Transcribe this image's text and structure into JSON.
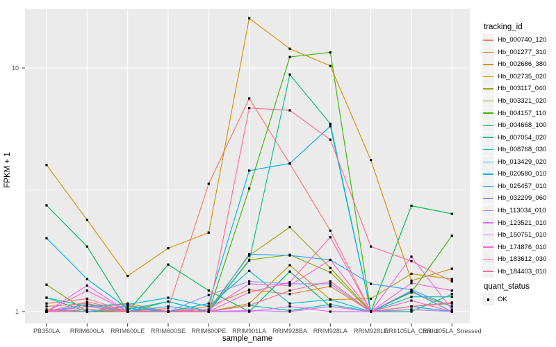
{
  "figure": {
    "panel_bg": "#EBEBEB",
    "grid_color": "#FFFFFF",
    "tick_color": "#333333",
    "tick_label_color": "#4D4D4D",
    "y_axis": {
      "title": "FPKM + 1",
      "tick_labels": [
        "10",
        "1"
      ]
    },
    "x_axis": {
      "title": "sample_name"
    },
    "legend": {
      "title": "tracking_id"
    },
    "quant_legend": {
      "title": "quant_status",
      "item_label": "OK",
      "marker_color": "#000000"
    }
  },
  "chart_data": {
    "type": "line",
    "title": "",
    "xlabel": "sample_name",
    "ylabel": "FPKM + 1",
    "y_scale": "log10",
    "y_major_ticks": [
      1,
      10
    ],
    "y_minor_ticks": [
      3.162
    ],
    "ylim": [
      0.93,
      17.5
    ],
    "grid": true,
    "legend_position": "right",
    "point_shape": "filled-square",
    "point_color": "#000000",
    "categories": [
      "PB350LA",
      "RRIM600LA",
      "RRIM600LE",
      "RRIM600SE",
      "RRIM600PE",
      "RRIM901LA",
      "RRIM928BA",
      "RRIM928LA",
      "RRIM928LE",
      "RRII105LA_Control",
      "RRII105LA_Stressed"
    ],
    "series": [
      {
        "name": "Hb_000740_120",
        "color": "#F8766D",
        "values": [
          1.08,
          1.13,
          1.0,
          1.03,
          3.35,
          7.5,
          4.05,
          2.15,
          1.0,
          1.05,
          1.0
        ]
      },
      {
        "name": "Hb_001277_310",
        "color": "#EA8331",
        "values": [
          1.05,
          1.08,
          1.0,
          1.0,
          1.05,
          1.23,
          1.18,
          1.27,
          1.0,
          1.05,
          1.08
        ]
      },
      {
        "name": "Hb_002686_380",
        "color": "#D89000",
        "values": [
          4.0,
          2.38,
          1.4,
          1.82,
          2.11,
          16.0,
          12.0,
          10.2,
          4.19,
          1.34,
          1.5
        ]
      },
      {
        "name": "Hb_002735_020",
        "color": "#C09B00",
        "values": [
          1.0,
          1.05,
          1.08,
          1.0,
          1.0,
          1.08,
          1.55,
          1.12,
          1.13,
          1.43,
          1.36
        ]
      },
      {
        "name": "Hb_003117_040",
        "color": "#A3A500",
        "values": [
          1.0,
          1.02,
          1.0,
          1.0,
          1.02,
          1.7,
          2.22,
          1.51,
          1.0,
          1.02,
          1.0
        ]
      },
      {
        "name": "Hb_003321_020",
        "color": "#7CAE00",
        "values": [
          1.29,
          1.0,
          1.05,
          1.0,
          1.0,
          1.63,
          1.71,
          1.45,
          1.0,
          1.2,
          1.05
        ]
      },
      {
        "name": "Hb_004157_110",
        "color": "#39B600",
        "values": [
          1.02,
          1.0,
          1.0,
          1.0,
          1.0,
          3.2,
          11.1,
          11.6,
          1.0,
          1.2,
          2.05
        ]
      },
      {
        "name": "Hb_004668_100",
        "color": "#00BB4E",
        "values": [
          2.73,
          1.85,
          1.0,
          1.56,
          1.22,
          1.0,
          1.46,
          1.05,
          1.0,
          2.72,
          2.52
        ]
      },
      {
        "name": "Hb_007054_020",
        "color": "#00C087",
        "values": [
          1.14,
          1.05,
          1.0,
          1.1,
          1.0,
          1.62,
          9.4,
          5.9,
          1.0,
          1.0,
          1.18
        ]
      },
      {
        "name": "Hb_008768_030",
        "color": "#00C0B2",
        "values": [
          1.14,
          1.0,
          1.02,
          1.1,
          1.0,
          1.06,
          1.01,
          1.07,
          1.0,
          1.15,
          1.15
        ]
      },
      {
        "name": "Hb_013429_020",
        "color": "#00BCD8",
        "values": [
          1.0,
          1.05,
          1.07,
          1.14,
          1.05,
          1.47,
          1.08,
          1.12,
          1.0,
          1.05,
          1.0
        ]
      },
      {
        "name": "Hb_020580_010",
        "color": "#00B0F6",
        "values": [
          2.0,
          1.36,
          1.03,
          1.0,
          1.08,
          3.79,
          4.06,
          5.77,
          1.0,
          1.21,
          1.0
        ]
      },
      {
        "name": "Hb_025457_010",
        "color": "#35A2FF",
        "values": [
          1.0,
          1.07,
          1.0,
          1.05,
          1.0,
          1.72,
          1.7,
          1.63,
          1.3,
          1.23,
          1.05
        ]
      },
      {
        "name": "Hb_032299_060",
        "color": "#9590FF",
        "values": [
          1.0,
          1.0,
          1.06,
          1.0,
          1.17,
          1.33,
          1.3,
          1.3,
          1.0,
          1.22,
          1.0
        ]
      },
      {
        "name": "Hb_113034_010",
        "color": "#C77CFF",
        "values": [
          1.0,
          1.02,
          1.0,
          1.0,
          1.0,
          1.01,
          1.0,
          1.05,
          1.0,
          1.02,
          1.0
        ]
      },
      {
        "name": "Hb_123521_010",
        "color": "#E76BF3",
        "values": [
          1.0,
          1.28,
          1.0,
          1.0,
          1.0,
          1.0,
          1.05,
          1.0,
          1.0,
          1.68,
          1.02
        ]
      },
      {
        "name": "Hb_150751_010",
        "color": "#FA62DB",
        "values": [
          1.0,
          1.22,
          1.0,
          1.0,
          1.02,
          1.3,
          1.28,
          1.63,
          1.0,
          1.31,
          1.22
        ]
      },
      {
        "name": "Hb_174876_010",
        "color": "#FF61C7",
        "values": [
          1.0,
          1.05,
          1.0,
          1.0,
          1.0,
          1.2,
          1.32,
          2.02,
          1.0,
          1.11,
          1.0
        ]
      },
      {
        "name": "Hb_183612_030",
        "color": "#FF68A1",
        "values": [
          1.0,
          1.1,
          1.0,
          1.0,
          1.0,
          1.06,
          1.22,
          1.33,
          1.0,
          1.05,
          1.09
        ]
      },
      {
        "name": "Hb_184403_010",
        "color": "#FF6C92",
        "values": [
          1.0,
          1.02,
          1.0,
          1.0,
          1.0,
          6.85,
          6.7,
          5.08,
          1.85,
          1.61,
          1.33
        ]
      }
    ]
  }
}
